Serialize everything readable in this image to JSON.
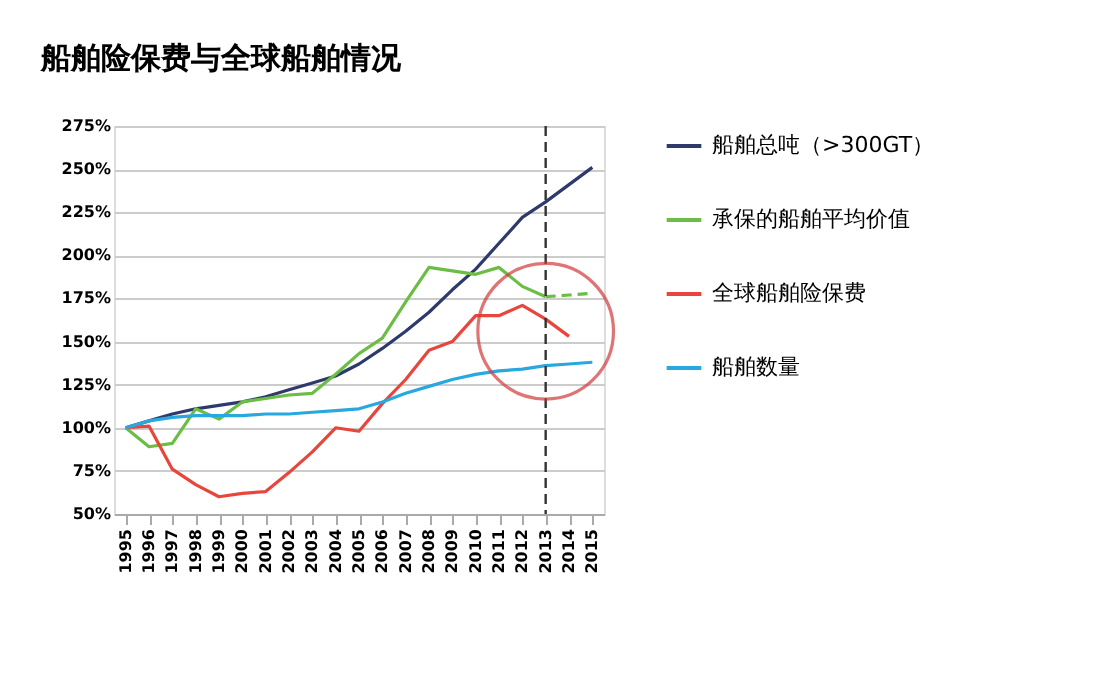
{
  "chart_data": {
    "type": "line",
    "title": "船舶险保费与全球船舶情况",
    "categories": [
      "1995",
      "1996",
      "1997",
      "1998",
      "1999",
      "2000",
      "2001",
      "2002",
      "2003",
      "2004",
      "2005",
      "2006",
      "2007",
      "2008",
      "2009",
      "2010",
      "2011",
      "2012",
      "2013",
      "2014",
      "2015"
    ],
    "series": [
      {
        "name": "船舶总吨（>300GT）",
        "color": "#2e3a6b",
        "values": [
          100,
          104,
          108,
          111,
          113,
          115,
          118,
          122,
          126,
          130,
          137,
          146,
          156,
          167,
          180,
          192,
          207,
          222,
          231,
          241,
          251
        ]
      },
      {
        "name": "承保的船舶平均价值",
        "color": "#6cbd45",
        "values": [
          100,
          89,
          91,
          111,
          105,
          115,
          117,
          119,
          120,
          131,
          143,
          152,
          173,
          193,
          191,
          189,
          193,
          182,
          176,
          null,
          null
        ]
      },
      {
        "name": "全球船舶险保费",
        "color": "#e8453c",
        "values": [
          100,
          101,
          76,
          67,
          60,
          62,
          63,
          74,
          86,
          100,
          98,
          114,
          128,
          145,
          150,
          165,
          165,
          171,
          163,
          153,
          null
        ]
      },
      {
        "name": "船舶数量",
        "color": "#29a8e0",
        "values": [
          100,
          104,
          106,
          107,
          107,
          107,
          108,
          108,
          109,
          110,
          111,
          115,
          120,
          124,
          128,
          131,
          133,
          134,
          136,
          137,
          138
        ]
      },
      {
        "color": "#6cbd45",
        "line_style": "dashed",
        "values": [
          null,
          null,
          null,
          null,
          null,
          null,
          null,
          null,
          null,
          null,
          null,
          null,
          null,
          null,
          null,
          null,
          null,
          null,
          176,
          177,
          178
        ]
      }
    ],
    "ylim": [
      50,
      275
    ],
    "yticks": [
      {
        "value": 50,
        "label": "50%"
      },
      {
        "value": 75,
        "label": "75%"
      },
      {
        "value": 100,
        "label": "100%"
      },
      {
        "value": 125,
        "label": "125%"
      },
      {
        "value": 150,
        "label": "150%"
      },
      {
        "value": 175,
        "label": "175%"
      },
      {
        "value": 200,
        "label": "200%"
      },
      {
        "value": 225,
        "label": "225%"
      },
      {
        "value": 250,
        "label": "250%"
      },
      {
        "value": 275,
        "label": "275%"
      }
    ],
    "grid": "y",
    "legend": "right",
    "line_style": "solid",
    "marker": "none",
    "ref_lines": [
      {
        "axis": "x",
        "value": "2013",
        "color": "#333333",
        "line_style": "dashed"
      }
    ]
  }
}
